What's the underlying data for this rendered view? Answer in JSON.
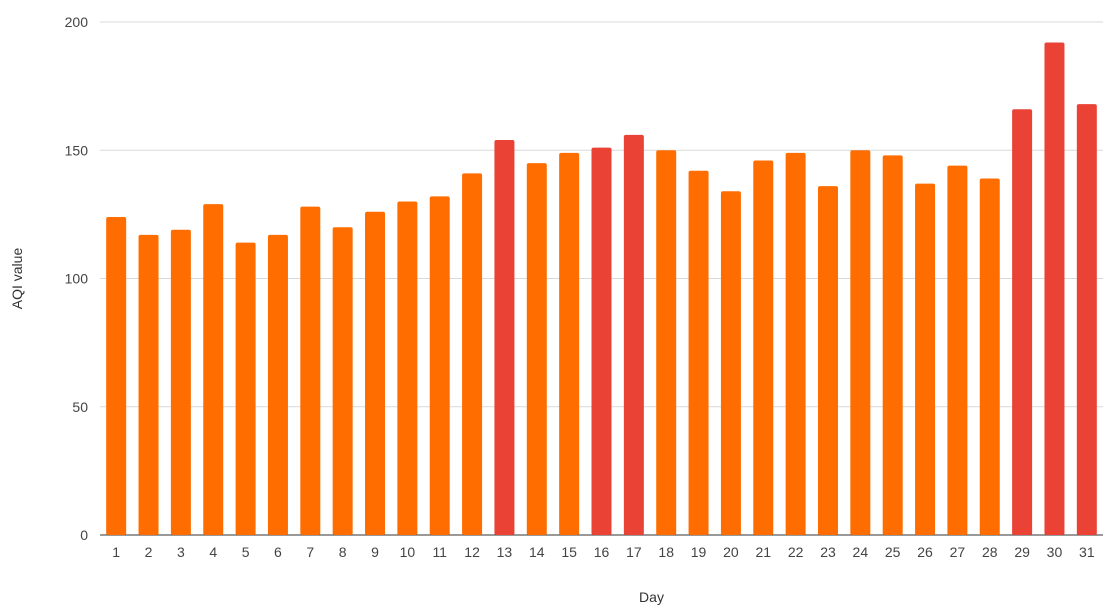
{
  "chart_data": {
    "type": "bar",
    "title": "",
    "xlabel": "Day",
    "ylabel": "AQI value",
    "ylim": [
      0,
      200
    ],
    "yticks": [
      0,
      50,
      100,
      150,
      200
    ],
    "grid": true,
    "legend": "none",
    "categories": [
      "1",
      "2",
      "3",
      "4",
      "5",
      "6",
      "7",
      "8",
      "9",
      "10",
      "11",
      "12",
      "13",
      "14",
      "15",
      "16",
      "17",
      "18",
      "19",
      "20",
      "21",
      "22",
      "23",
      "24",
      "25",
      "26",
      "27",
      "28",
      "29",
      "30",
      "31"
    ],
    "values": [
      124,
      117,
      119,
      129,
      114,
      117,
      128,
      120,
      126,
      130,
      132,
      141,
      154,
      145,
      149,
      151,
      156,
      150,
      142,
      134,
      146,
      149,
      136,
      150,
      148,
      137,
      144,
      139,
      166,
      192,
      168
    ],
    "colors": {
      "orange": "#ff6d01",
      "red": "#ea4335",
      "gridline": "#d9d9d9"
    },
    "bar_color_rule": "values above 150 are red, others orange"
  }
}
